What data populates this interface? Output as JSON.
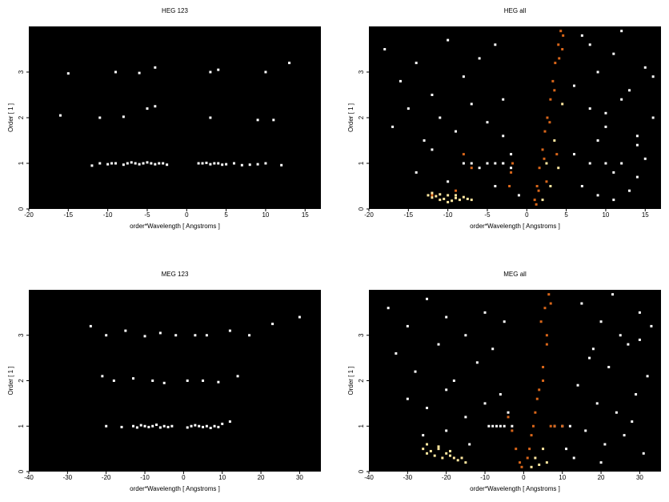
{
  "chart_data": [
    {
      "type": "scatter",
      "title": "HEG 123",
      "xlabel": "order*Wavelength [ Angstroms ]",
      "ylabel": "Order [ 1 ]",
      "xlim": [
        -20,
        17
      ],
      "ylim": [
        0,
        4
      ],
      "xticks": [
        -20,
        -15,
        -10,
        -5,
        0,
        5,
        10,
        15
      ],
      "yticks": [
        0,
        1,
        2,
        3
      ],
      "series": [
        {
          "color": "#ffffff",
          "x": [
            -12,
            -11,
            -10,
            -9.5,
            -9,
            -8,
            -7.5,
            -7,
            -6.5,
            -6,
            -5.5,
            -5,
            -4.5,
            -4,
            -3.5,
            -3,
            -2.5,
            1.5,
            2,
            2.5,
            3,
            3.5,
            4,
            4.5,
            5,
            6,
            7,
            8,
            9,
            10,
            12,
            -16,
            -11,
            -8,
            -5,
            -4,
            3,
            9,
            11,
            -15,
            -9,
            -6,
            -4,
            3,
            4,
            10,
            13
          ],
          "y": [
            0.95,
            1,
            0.98,
            1,
            1,
            0.97,
            1,
            1.02,
            1,
            0.98,
            1,
            1.02,
            1,
            0.98,
            1,
            1,
            0.97,
            1,
            1,
            1.01,
            0.98,
            1,
            1,
            0.97,
            0.98,
            1,
            0.96,
            0.97,
            0.98,
            1,
            0.96,
            2.05,
            2,
            2.02,
            2.2,
            2.25,
            2,
            1.95,
            1.95,
            2.97,
            3,
            2.98,
            3.1,
            3,
            3.05,
            3,
            3.2
          ]
        }
      ]
    },
    {
      "type": "scatter",
      "title": "HEG all",
      "xlabel": "order*Wavelength [ Angstroms ]",
      "ylabel": "Order [ 1 ]",
      "xlim": [
        -20,
        17
      ],
      "ylim": [
        0,
        4
      ],
      "xticks": [
        -20,
        -15,
        -10,
        -5,
        0,
        5,
        10,
        15
      ],
      "yticks": [
        0,
        1,
        2,
        3
      ],
      "series": [
        {
          "color": "#ffffff",
          "x": [
            -18,
            -16,
            -14,
            -12,
            -10,
            -8,
            -6,
            -4,
            -3,
            -17,
            -15,
            -13,
            -11,
            -9,
            -7,
            -5,
            -3,
            -2,
            -14,
            -10,
            -6,
            -4,
            -12,
            -8,
            -5,
            -3,
            -7,
            -5,
            -4,
            -3,
            -2,
            -1,
            7,
            9,
            11,
            13,
            15,
            8,
            10,
            12,
            14,
            16,
            6,
            8,
            10,
            12,
            14,
            7,
            9,
            11,
            13,
            15,
            8,
            12,
            16,
            6,
            10,
            14,
            9,
            11
          ],
          "y": [
            3.5,
            2.8,
            3.2,
            2.5,
            3.7,
            2.9,
            3.3,
            3.6,
            2.4,
            1.8,
            2.2,
            1.5,
            2.0,
            1.7,
            2.3,
            1.9,
            1.6,
            1.2,
            0.8,
            0.6,
            0.9,
            0.5,
            1.3,
            1.0,
            1.0,
            1.0,
            1.0,
            1.0,
            1.0,
            1.0,
            0.9,
            0.3,
            3.8,
            3.0,
            3.4,
            2.6,
            3.1,
            2.2,
            1.8,
            2.4,
            1.6,
            2.0,
            1.2,
            1.0,
            1.0,
            1.0,
            0.7,
            0.5,
            0.3,
            0.8,
            0.4,
            1.1,
            3.6,
            3.9,
            2.9,
            2.7,
            2.1,
            1.4,
            1.5,
            0.2
          ]
        },
        {
          "color": "#d9661a",
          "x": [
            1,
            1.3,
            1.6,
            2,
            2.3,
            2.6,
            3,
            3.3,
            3.6,
            4,
            4.3,
            4.6,
            1.5,
            2.2,
            2.9,
            3.5,
            4.1,
            4.5,
            1.2,
            2.5,
            3.8,
            -2,
            -2.2,
            -1.8,
            -8,
            -7,
            -12,
            -9
          ],
          "y": [
            0.2,
            0.5,
            0.9,
            1.3,
            1.7,
            2.0,
            2.4,
            2.8,
            3.2,
            3.6,
            3.9,
            3.8,
            0.4,
            1.1,
            1.9,
            2.6,
            3.3,
            3.5,
            0.1,
            0.6,
            1.2,
            0.8,
            0.5,
            1.0,
            1.2,
            0.9,
            0.3,
            0.4
          ]
        },
        {
          "color": "#ffe8a0",
          "x": [
            -12.5,
            -12,
            -11.5,
            -11,
            -10.5,
            -10,
            -9.5,
            -9,
            -8.5,
            -8,
            -7.5,
            -7,
            -12,
            -11,
            -10,
            -9,
            2,
            3,
            4,
            2.5,
            3.5,
            4.5
          ],
          "y": [
            0.3,
            0.25,
            0.28,
            0.2,
            0.22,
            0.3,
            0.18,
            0.24,
            0.2,
            0.26,
            0.22,
            0.2,
            0.35,
            0.32,
            0.15,
            0.3,
            0.2,
            0.5,
            0.9,
            1.0,
            1.5,
            2.3
          ]
        }
      ]
    },
    {
      "type": "scatter",
      "title": "MEG 123",
      "xlabel": "order*Wavelength [ Angstroms ]",
      "ylabel": "Order [ 1 ]",
      "xlim": [
        -40,
        35.5
      ],
      "ylim": [
        0,
        4
      ],
      "xticks": [
        -40,
        -30,
        -20,
        -10,
        0,
        10,
        20,
        30
      ],
      "yticks": [
        0,
        1,
        2,
        3
      ],
      "series": [
        {
          "color": "#ffffff",
          "x": [
            -20,
            -16,
            -13,
            -12,
            -11,
            -10,
            -9,
            -8,
            -7,
            -6,
            -5,
            -4,
            -3,
            1,
            2,
            3,
            4,
            5,
            6,
            7,
            8,
            9,
            10,
            12,
            -21,
            -18,
            -13,
            -8,
            -5,
            1,
            5,
            9,
            14,
            -24,
            -20,
            -15,
            -10,
            -6,
            -2,
            3,
            6,
            12,
            17,
            23,
            30
          ],
          "y": [
            1.0,
            0.98,
            1,
            0.97,
            1.02,
            1,
            0.98,
            1,
            1.03,
            0.97,
            1,
            0.98,
            1,
            0.97,
            1,
            1.02,
            1,
            0.98,
            1,
            0.96,
            1,
            0.98,
            1.05,
            1.1,
            2.1,
            2.0,
            2.05,
            2.0,
            1.95,
            2.0,
            2.0,
            1.97,
            2.1,
            3.2,
            3.0,
            3.1,
            2.98,
            3.05,
            3.0,
            3.0,
            3.0,
            3.1,
            3.0,
            3.25,
            3.4
          ]
        }
      ]
    },
    {
      "type": "scatter",
      "title": "MEG all",
      "xlabel": "order*Wavelength [ Angstroms ]",
      "ylabel": "Order [ 1 ]",
      "xlim": [
        -40,
        35.5
      ],
      "ylim": [
        0,
        4
      ],
      "xticks": [
        -40,
        -30,
        -20,
        -10,
        0,
        10,
        20,
        30
      ],
      "yticks": [
        0,
        1,
        2,
        3
      ],
      "series": [
        {
          "color": "#ffffff",
          "x": [
            -35,
            -30,
            -25,
            -20,
            -15,
            -10,
            -5,
            -33,
            -28,
            -22,
            -18,
            -12,
            -8,
            -30,
            -25,
            -20,
            -15,
            -10,
            -6,
            -4,
            -26,
            -20,
            -14,
            -8,
            -9,
            -7,
            -6,
            -5,
            -3,
            15,
            20,
            25,
            30,
            18,
            22,
            27,
            32,
            14,
            19,
            24,
            29,
            16,
            21,
            26,
            31,
            8,
            10,
            12,
            13,
            17,
            23,
            28,
            33,
            11,
            20,
            30
          ],
          "y": [
            3.6,
            3.2,
            3.8,
            3.4,
            3.0,
            3.5,
            3.3,
            2.6,
            2.2,
            2.8,
            2.0,
            2.4,
            2.7,
            1.6,
            1.4,
            1.8,
            1.2,
            1.5,
            1.7,
            1.3,
            0.8,
            0.9,
            0.6,
            1.0,
            1.0,
            1.0,
            1.0,
            1.0,
            1.0,
            3.7,
            3.3,
            3.0,
            3.5,
            2.7,
            2.3,
            2.8,
            2.1,
            1.9,
            1.5,
            1.3,
            1.7,
            0.9,
            0.6,
            0.8,
            0.4,
            1.0,
            1.0,
            1.0,
            0.3,
            2.5,
            3.9,
            1.1,
            3.2,
            0.5,
            0.2,
            2.9
          ]
        },
        {
          "color": "#d9661a",
          "x": [
            1,
            2,
            3,
            4,
            5,
            6,
            4.5,
            5.5,
            6.5,
            7,
            3.5,
            2.5,
            1.5,
            5,
            6,
            -1,
            -2,
            -3,
            -4,
            -0.5,
            7,
            8,
            10
          ],
          "y": [
            0.3,
            0.8,
            1.3,
            1.8,
            2.3,
            2.8,
            3.3,
            3.6,
            3.9,
            3.7,
            1.6,
            1.0,
            0.5,
            2.0,
            3.0,
            0.2,
            0.5,
            0.9,
            1.2,
            0.1,
            1.0,
            1.0,
            1.0
          ]
        },
        {
          "color": "#ffe8a0",
          "x": [
            -26,
            -25,
            -24,
            -23,
            -22,
            -21,
            -20,
            -19,
            -18,
            -17,
            -16,
            -25,
            -22,
            -19,
            -15,
            2,
            4,
            6,
            3,
            5
          ],
          "y": [
            0.5,
            0.4,
            0.45,
            0.35,
            0.5,
            0.3,
            0.4,
            0.35,
            0.3,
            0.25,
            0.3,
            0.6,
            0.55,
            0.45,
            0.2,
            0.1,
            0.15,
            0.2,
            0.3,
            0.5
          ]
        }
      ]
    }
  ]
}
